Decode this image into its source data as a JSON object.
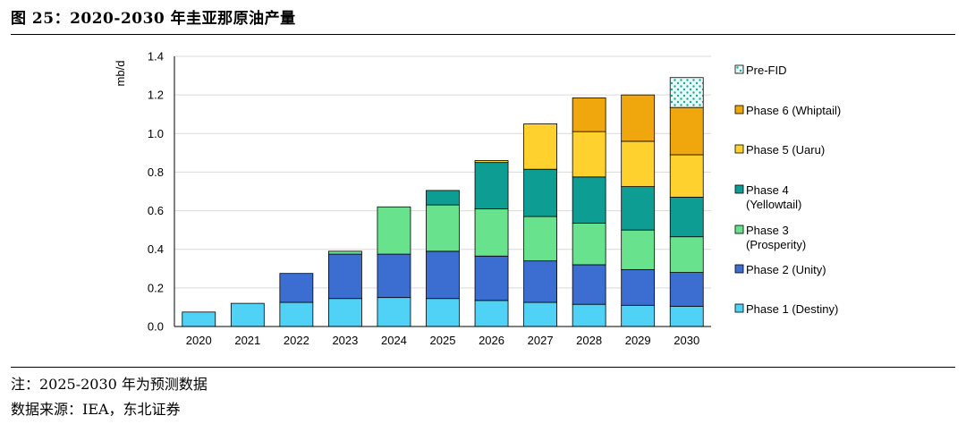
{
  "header": {
    "title": "图 25：2020-2030 年圭亚那原油产量"
  },
  "footer": {
    "note": "注：2025-2030 年为预测数据",
    "source": "数据来源：IEA，东北证券"
  },
  "chart_data": {
    "type": "bar",
    "stacked": true,
    "title": "2020-2030 年圭亚那原油产量",
    "xlabel": "",
    "ylabel": "mb/d",
    "ylim": [
      0,
      1.4
    ],
    "yticks": [
      0.0,
      0.2,
      0.4,
      0.6,
      0.8,
      1.0,
      1.2,
      1.4
    ],
    "ytick_labels": [
      "0.0",
      "0.2",
      "0.4",
      "0.6",
      "0.8",
      "1.0",
      "1.2",
      "1.4"
    ],
    "grid": true,
    "legend_position": "right",
    "categories": [
      "2020",
      "2021",
      "2022",
      "2023",
      "2024",
      "2025",
      "2026",
      "2027",
      "2028",
      "2029",
      "2030"
    ],
    "series": [
      {
        "name": "Phase 1 (Destiny)",
        "legend_lines": [
          "Phase 1 (Destiny)"
        ],
        "color": "#4FD2F5",
        "values": [
          0.075,
          0.12,
          0.125,
          0.145,
          0.15,
          0.145,
          0.135,
          0.125,
          0.115,
          0.11,
          0.105
        ]
      },
      {
        "name": "Phase 2 (Unity)",
        "legend_lines": [
          "Phase 2 (Unity)"
        ],
        "color": "#3C6DD1",
        "values": [
          0,
          0,
          0.15,
          0.23,
          0.225,
          0.245,
          0.23,
          0.215,
          0.205,
          0.185,
          0.175
        ]
      },
      {
        "name": "Phase 3 (Prosperity)",
        "legend_lines": [
          "Phase 3",
          "(Prosperity)"
        ],
        "color": "#69E28E",
        "values": [
          0,
          0,
          0,
          0.015,
          0.245,
          0.24,
          0.245,
          0.23,
          0.215,
          0.205,
          0.185
        ]
      },
      {
        "name": "Phase 4 (Yellowtail)",
        "legend_lines": [
          "Phase 4",
          "(Yellowtail)"
        ],
        "color": "#0E9D92",
        "values": [
          0,
          0,
          0,
          0,
          0,
          0.075,
          0.24,
          0.245,
          0.24,
          0.225,
          0.205
        ]
      },
      {
        "name": "Phase 5 (Uaru)",
        "legend_lines": [
          "Phase 5 (Uaru)"
        ],
        "color": "#FFD12E",
        "values": [
          0,
          0,
          0,
          0,
          0,
          0,
          0.01,
          0.235,
          0.235,
          0.235,
          0.22
        ]
      },
      {
        "name": "Phase 6 (Whiptail)",
        "legend_lines": [
          "Phase 6 (Whiptail)"
        ],
        "color": "#F0A70E",
        "values": [
          0,
          0,
          0,
          0,
          0,
          0,
          0,
          0,
          0.175,
          0.24,
          0.245
        ]
      },
      {
        "name": "Pre-FID",
        "legend_lines": [
          "Pre-FID"
        ],
        "color": "#E8FAF8",
        "pattern": "dots",
        "values": [
          0,
          0,
          0,
          0,
          0,
          0,
          0,
          0,
          0,
          0,
          0.155
        ]
      }
    ]
  }
}
